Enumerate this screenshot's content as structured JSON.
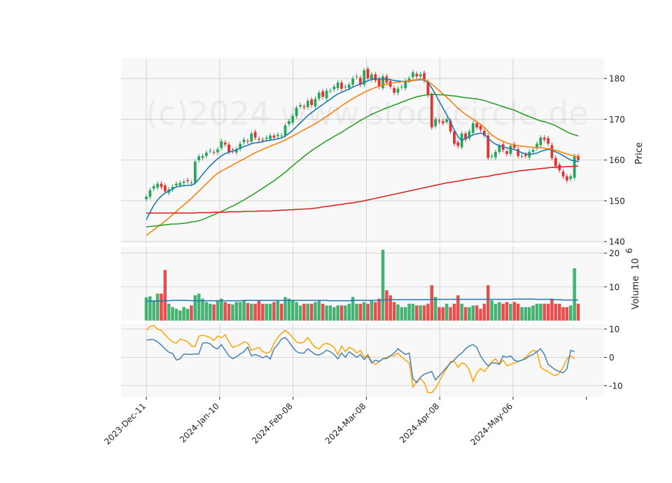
{
  "watermark": "(c)2024 www.stockcircle.de",
  "chart_data": {
    "type": "candlestick",
    "x_tick_labels": [
      "2023-Dec-11",
      "2024-Jan-10",
      "2024-Feb-08",
      "2024-Mar-08",
      "2024-Apr-08",
      "2024-May-06"
    ],
    "colors": {
      "up": "#26a65b",
      "down": "#e8302e",
      "ma_short": "#1f77b4",
      "ma_mid": "#ff7f0e",
      "ma_long": "#2ca02c",
      "ma_200": "#d62728",
      "macd": "#4682b4",
      "signal": "#ffa500"
    },
    "price_panel": {
      "ylabel": "Price",
      "ylim": [
        139.5,
        185
      ],
      "yticks": [
        140,
        150,
        160,
        170,
        180
      ],
      "close": [
        151.0,
        152.6,
        153.6,
        154.2,
        153.4,
        152.3,
        152.8,
        153.4,
        154.2,
        154.4,
        154.7,
        154.8,
        154.5,
        159.6,
        160.9,
        161.0,
        161.8,
        162.3,
        161.9,
        162.6,
        164.6,
        163.8,
        162.0,
        162.2,
        162.7,
        164.0,
        165.0,
        164.5,
        166.5,
        165.5,
        165.0,
        164.8,
        165.5,
        166.0,
        165.5,
        166.2,
        166.0,
        168.5,
        169.5,
        170.8,
        172.8,
        173.5,
        173.0,
        174.5,
        173.5,
        175.0,
        176.5,
        175.5,
        177.0,
        177.0,
        178.0,
        179.0,
        177.5,
        178.0,
        178.5,
        180.0,
        180.5,
        178.5,
        182.0,
        180.0,
        181.0,
        179.5,
        178.0,
        180.5,
        179.0,
        178.0,
        176.5,
        177.5,
        178.0,
        179.5,
        180.0,
        181.5,
        180.5,
        181.0,
        179.5,
        176.0,
        168.0,
        170.0,
        169.5,
        169.0,
        170.0,
        167.0,
        164.0,
        163.5,
        166.5,
        165.0,
        167.0,
        169.0,
        168.0,
        167.5,
        166.0,
        160.5,
        161.0,
        162.0,
        163.5,
        162.5,
        161.5,
        163.5,
        163.0,
        161.0,
        161.0,
        161.0,
        162.0,
        162.5,
        164.0,
        165.5,
        165.0,
        164.0,
        160.5,
        158.5,
        157.5,
        156.0,
        155.0,
        156.0,
        161.0,
        160.0
      ],
      "moving_averages": [
        {
          "values": [
            145.3,
            147.2,
            148.9,
            150.2,
            151.2,
            151.9,
            152.4,
            152.9,
            153.4,
            153.6,
            153.7,
            153.8,
            153.8,
            154.3,
            155.3,
            156.5,
            157.6,
            158.6,
            159.5,
            160.3,
            161.0,
            161.6,
            161.9,
            162.2,
            162.5,
            162.9,
            163.3,
            163.6,
            164.0,
            164.2,
            164.3,
            164.5,
            164.7,
            164.9,
            165.0,
            165.2,
            165.4,
            165.9,
            166.5,
            167.3,
            168.2,
            169.1,
            170.0,
            170.9,
            171.6,
            172.3,
            173.0,
            173.6,
            174.3,
            174.9,
            175.6,
            176.2,
            176.6,
            177.0,
            177.4,
            177.9,
            178.3,
            178.6,
            179.1,
            179.4,
            179.8,
            179.9,
            179.9,
            179.9,
            179.8,
            179.7,
            179.5,
            179.4,
            179.3,
            179.2,
            179.3,
            179.5,
            179.6,
            179.7,
            179.6,
            179.1,
            177.7,
            176.1,
            174.4,
            172.7,
            171.1,
            169.3,
            167.4,
            165.7,
            164.8,
            165.3,
            165.7,
            166.2,
            166.4,
            166.6,
            166.4,
            165.4,
            164.5,
            163.9,
            163.5,
            163.3,
            163.0,
            162.8,
            162.6,
            162.2,
            161.8,
            161.5,
            161.4,
            161.5,
            161.7,
            162.1,
            162.4,
            162.6,
            162.4,
            162.0,
            161.6,
            161.1,
            160.5,
            160.0,
            159.8,
            159.6
          ],
          "name": ""
        },
        {
          "values": [
            141.5,
            142.2,
            142.9,
            143.6,
            144.3,
            145.0,
            145.8,
            146.6,
            147.4,
            148.2,
            149.0,
            149.8,
            150.6,
            151.5,
            152.4,
            153.3,
            154.2,
            155.1,
            156.0,
            156.7,
            157.3,
            157.8,
            158.3,
            158.8,
            159.3,
            159.8,
            160.3,
            160.8,
            161.3,
            161.8,
            162.2,
            162.6,
            163.0,
            163.4,
            163.8,
            164.1,
            164.5,
            164.9,
            165.4,
            165.9,
            166.4,
            166.9,
            167.4,
            167.9,
            168.4,
            168.9,
            169.5,
            170.1,
            170.7,
            171.3,
            172.0,
            172.6,
            173.3,
            173.9,
            174.5,
            175.1,
            175.6,
            176.1,
            176.6,
            177.0,
            177.4,
            177.8,
            178.1,
            178.4,
            178.6,
            178.8,
            179.0,
            179.1,
            179.2,
            179.3,
            179.4,
            179.6,
            179.7,
            179.8,
            179.7,
            179.3,
            178.6,
            177.8,
            177.0,
            176.2,
            175.4,
            174.5,
            173.6,
            172.7,
            171.9,
            171.2,
            170.6,
            170.0,
            169.4,
            168.8,
            168.0,
            167.0,
            166.1,
            165.5,
            165.0,
            164.6,
            164.2,
            163.9,
            163.7,
            163.5,
            163.4,
            163.3,
            163.2,
            163.1,
            163.0,
            163.0,
            162.9,
            162.8,
            162.6,
            162.4,
            162.1,
            161.8,
            161.5,
            161.2,
            161.0,
            160.8
          ],
          "name": ""
        },
        {
          "values": [
            143.6,
            143.7,
            143.8,
            143.9,
            144.0,
            144.1,
            144.2,
            144.3,
            144.3,
            144.4,
            144.5,
            144.6,
            144.8,
            144.9,
            145.1,
            145.4,
            145.8,
            146.2,
            146.6,
            147.0,
            147.4,
            147.8,
            148.3,
            148.7,
            149.2,
            149.7,
            150.2,
            150.8,
            151.3,
            151.9,
            152.5,
            153.1,
            153.7,
            154.3,
            154.9,
            155.6,
            156.3,
            157.0,
            157.8,
            158.6,
            159.4,
            160.1,
            160.9,
            161.6,
            162.3,
            162.9,
            163.5,
            164.1,
            164.7,
            165.2,
            165.8,
            166.3,
            166.8,
            167.4,
            168.0,
            168.5,
            169.1,
            169.7,
            170.2,
            170.7,
            171.2,
            171.6,
            172.0,
            172.4,
            172.8,
            173.1,
            173.5,
            173.8,
            174.2,
            174.5,
            174.9,
            175.2,
            175.5,
            175.7,
            175.9,
            176.0,
            176.1,
            176.1,
            176.0,
            176.0,
            175.9,
            175.8,
            175.7,
            175.6,
            175.4,
            175.3,
            175.2,
            175.1,
            175.0,
            174.8,
            174.6,
            174.3,
            174.0,
            173.7,
            173.4,
            173.1,
            172.8,
            172.5,
            172.2,
            171.8,
            171.4,
            171.0,
            170.6,
            170.3,
            169.9,
            169.6,
            169.4,
            169.1,
            168.8,
            168.4,
            167.9,
            167.4,
            166.9,
            166.5,
            166.2,
            165.9
          ],
          "name": ""
        },
        {
          "values": [
            147.0,
            147.0,
            147.0,
            147.0,
            147.0,
            147.0,
            147.0,
            147.0,
            147.0,
            147.0,
            147.0,
            147.0,
            147.0,
            147.0,
            147.1,
            147.1,
            147.1,
            147.1,
            147.2,
            147.2,
            147.2,
            147.2,
            147.3,
            147.3,
            147.3,
            147.3,
            147.4,
            147.4,
            147.4,
            147.4,
            147.5,
            147.5,
            147.5,
            147.5,
            147.6,
            147.6,
            147.7,
            147.7,
            147.8,
            147.8,
            147.9,
            147.9,
            148.0,
            148.0,
            148.1,
            148.2,
            148.3,
            148.5,
            148.6,
            148.7,
            148.9,
            149.0,
            149.1,
            149.3,
            149.4,
            149.5,
            149.7,
            149.8,
            150.0,
            150.2,
            150.4,
            150.6,
            150.8,
            151.0,
            151.2,
            151.4,
            151.6,
            151.8,
            152.0,
            152.2,
            152.4,
            152.6,
            152.8,
            153.0,
            153.2,
            153.4,
            153.6,
            153.8,
            154.0,
            154.2,
            154.4,
            154.5,
            154.7,
            154.8,
            155.0,
            155.2,
            155.3,
            155.5,
            155.6,
            155.8,
            155.9,
            156.0,
            156.2,
            156.4,
            156.5,
            156.7,
            156.8,
            157.0,
            157.1,
            157.3,
            157.4,
            157.5,
            157.6,
            157.7,
            157.8,
            157.9,
            158.0,
            158.1,
            158.2,
            158.2,
            158.3,
            158.3,
            158.4,
            158.4,
            158.5,
            158.5
          ],
          "name": ""
        }
      ]
    },
    "volume_panel": {
      "ylabel": "Volume",
      "scale_label": "10",
      "scale_exponent": "6",
      "ylim": [
        0,
        22
      ],
      "yticks": [
        10,
        20
      ],
      "values": [
        6.9,
        7.2,
        6.0,
        8.0,
        8.0,
        15.0,
        5.0,
        4.0,
        3.5,
        3.0,
        4.0,
        3.5,
        4.5,
        7.5,
        8.0,
        6.5,
        5.5,
        5.0,
        4.8,
        6.0,
        6.5,
        5.5,
        5.0,
        4.8,
        5.5,
        5.5,
        6.0,
        5.2,
        5.0,
        5.0,
        6.0,
        5.0,
        5.0,
        5.0,
        5.5,
        6.0,
        5.0,
        7.0,
        6.5,
        6.0,
        5.5,
        4.5,
        5.0,
        5.0,
        5.0,
        5.5,
        6.0,
        5.0,
        4.5,
        4.5,
        4.0,
        4.5,
        4.5,
        4.5,
        5.0,
        7.0,
        5.0,
        5.0,
        5.5,
        5.0,
        6.0,
        5.5,
        6.5,
        21.0,
        9.0,
        7.5,
        5.5,
        4.8,
        4.0,
        4.0,
        5.0,
        5.0,
        4.5,
        4.5,
        4.5,
        5.0,
        10.5,
        7.0,
        4.0,
        4.0,
        5.0,
        4.0,
        5.0,
        7.5,
        5.0,
        4.0,
        4.0,
        4.5,
        4.5,
        3.5,
        5.0,
        10.5,
        6.0,
        5.0,
        5.5,
        5.0,
        5.5,
        5.0,
        5.5,
        5.0,
        4.0,
        4.0,
        4.0,
        4.5,
        5.0,
        5.0,
        5.0,
        5.0,
        6.5,
        5.0,
        5.0,
        4.0,
        4.0,
        4.5,
        15.5,
        5.0
      ],
      "average": [
        5.8,
        5.8,
        5.8,
        5.8,
        5.9,
        5.9,
        5.9,
        6.0,
        6.0,
        6.0,
        6.0,
        6.0,
        5.9,
        5.9,
        5.9,
        5.9,
        5.9,
        5.9,
        5.9,
        5.9,
        5.9,
        5.9,
        5.9,
        5.9,
        5.9,
        5.9,
        6.0,
        6.0,
        6.0,
        6.0,
        6.0,
        6.0,
        6.0,
        6.0,
        6.0,
        6.0,
        6.0,
        6.0,
        6.0,
        6.0,
        6.0,
        6.0,
        6.0,
        6.0,
        6.0,
        6.0,
        6.0,
        6.0,
        6.0,
        5.9,
        5.9,
        5.9,
        5.9,
        5.9,
        5.9,
        6.0,
        6.0,
        6.0,
        6.0,
        6.0,
        6.0,
        6.0,
        6.0,
        6.1,
        6.2,
        6.2,
        6.2,
        6.2,
        6.2,
        6.2,
        6.2,
        6.2,
        6.2,
        6.2,
        6.2,
        6.2,
        6.3,
        6.3,
        6.3,
        6.3,
        6.3,
        6.3,
        6.3,
        6.3,
        6.3,
        6.3,
        6.3,
        6.3,
        6.3,
        6.3,
        6.3,
        6.3,
        6.3,
        6.3,
        6.3,
        6.3,
        6.3,
        6.3,
        6.4,
        6.4,
        6.4,
        6.4,
        6.4,
        6.4,
        6.3,
        6.3,
        6.3,
        6.3,
        6.3,
        6.2,
        6.2,
        6.1,
        6.1,
        6.1,
        6.1,
        6.1
      ]
    },
    "macd_panel": {
      "ylim": [
        -14,
        12
      ],
      "yticks": [
        -10,
        0,
        10
      ],
      "macd": [
        6.0,
        6.3,
        6.2,
        5.5,
        4.3,
        3.0,
        1.8,
        1.4,
        -1.0,
        -0.5,
        1.2,
        1.1,
        1.0,
        1.2,
        1.2,
        5.0,
        5.2,
        4.8,
        3.5,
        3.0,
        4.5,
        2.5,
        0.5,
        -0.5,
        0.2,
        1.2,
        2.0,
        3.6,
        0.5,
        1.0,
        0.5,
        -0.2,
        0.5,
        -0.6,
        3.0,
        4.5,
        6.5,
        7.0,
        5.5,
        3.5,
        2.0,
        1.5,
        1.5,
        3.0,
        2.0,
        1.0,
        0.8,
        1.5,
        2.5,
        2.0,
        1.0,
        -0.5,
        1.5,
        0.0,
        2.0,
        1.0,
        0.0,
        1.0,
        -0.8,
        0.5,
        -2.0,
        -1.0,
        -1.5,
        -0.5,
        -0.4,
        0.5,
        1.5,
        3.0,
        2.0,
        1.0,
        1.5,
        -7.5,
        -9.0,
        -7.0,
        -6.0,
        -5.5,
        -5.0,
        -8.0,
        -6.5,
        -5.0,
        -3.5,
        -2.0,
        -1.0,
        0.5,
        1.5,
        3.0,
        4.0,
        4.5,
        3.5,
        0.5,
        -1.5,
        -3.0,
        -2.0,
        -2.0,
        -2.5,
        0.5,
        0.0,
        0.5,
        -1.0,
        -1.5,
        -1.0,
        -0.5,
        0.5,
        1.0,
        2.0,
        3.0,
        1.0,
        -2.5,
        -3.5,
        -4.5,
        -5.0,
        -5.5,
        -4.0,
        2.5,
        2.0
      ],
      "signal": [
        9.5,
        11.0,
        11.2,
        10.0,
        9.5,
        8.0,
        6.5,
        5.5,
        5.0,
        6.5,
        6.0,
        5.5,
        4.0,
        3.8,
        7.5,
        7.8,
        7.5,
        7.0,
        6.0,
        7.5,
        7.0,
        8.0,
        5.5,
        3.5,
        4.0,
        4.5,
        5.5,
        5.0,
        2.5,
        3.0,
        3.5,
        2.0,
        1.5,
        2.0,
        5.0,
        7.0,
        8.5,
        9.5,
        8.5,
        7.0,
        5.5,
        5.0,
        5.5,
        7.0,
        5.0,
        3.5,
        3.0,
        4.5,
        5.0,
        4.5,
        3.5,
        1.0,
        4.0,
        2.0,
        3.5,
        3.0,
        1.5,
        2.5,
        0.0,
        1.0,
        -1.5,
        -2.5,
        -1.5,
        -0.5,
        0.0,
        0.5,
        0.5,
        1.5,
        0.0,
        -1.0,
        -2.0,
        -10.5,
        -8.5,
        -7.5,
        -9.0,
        -12.5,
        -12.5,
        -11.0,
        -8.5,
        -6.0,
        -4.0,
        -1.5,
        -1.5,
        -3.5,
        -2.0,
        -2.5,
        -4.5,
        -8.5,
        -5.5,
        -4.0,
        -5.0,
        -3.5,
        -1.5,
        -0.5,
        -2.5,
        -1.0,
        -3.0,
        -2.5,
        -2.0,
        -1.5,
        -1.0,
        0.0,
        1.5,
        2.5,
        2.0,
        -3.5,
        -4.5,
        -5.0,
        -6.0,
        -6.5,
        -5.5,
        -3.5,
        -0.5,
        0.5,
        -0.5
      ]
    }
  }
}
